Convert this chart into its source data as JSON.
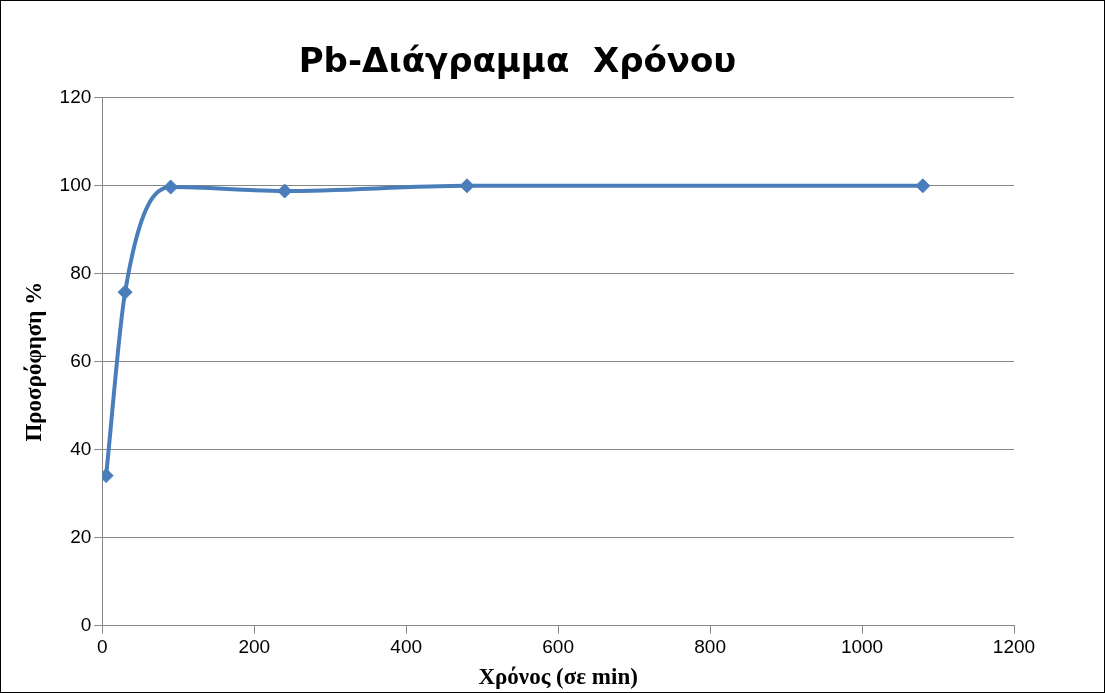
{
  "chart_data": {
    "type": "line",
    "title": "Pb-Διάγραμμα  Χρόνου",
    "xlabel": "Χρόνος (σε min)",
    "ylabel": "Προσρόφηση %",
    "x": [
      5,
      30,
      90,
      240,
      480,
      1080
    ],
    "series": [
      {
        "color": "#4a7ebb",
        "values": [
          34.1,
          75.8,
          99.7,
          98.8,
          100,
          100
        ]
      }
    ],
    "xlim": [
      0,
      1200
    ],
    "xticks": [
      0,
      200,
      400,
      600,
      800,
      1000,
      1200
    ],
    "ylim": [
      0,
      120
    ],
    "yticks": [
      0,
      20,
      40,
      60,
      80,
      100,
      120
    ],
    "grid": "y",
    "legend": false,
    "marker": "diamond",
    "line_style": "solid"
  }
}
